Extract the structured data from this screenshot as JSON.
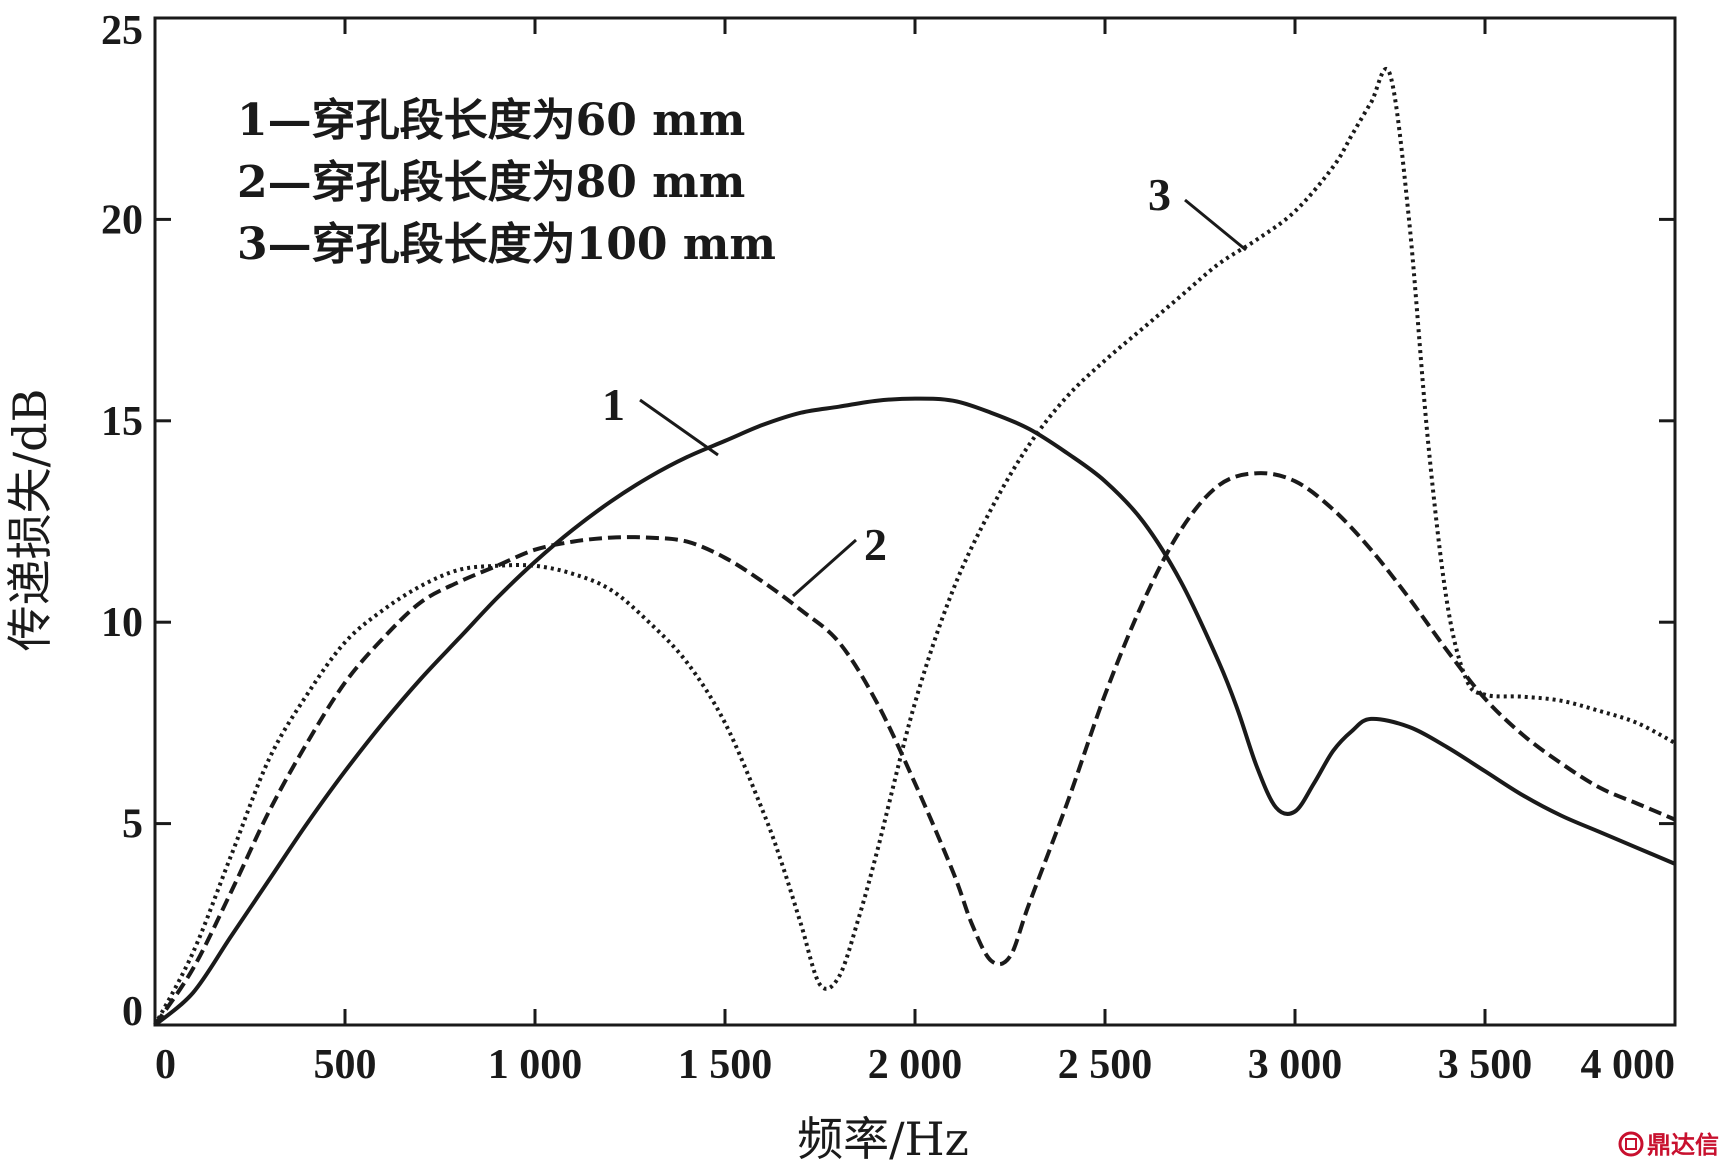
{
  "chart_data": {
    "type": "line",
    "xlabel": "频率/Hz",
    "ylabel": "传递损失/dB",
    "xlim": [
      0,
      4000
    ],
    "ylim": [
      0,
      25
    ],
    "x_ticks": [
      0,
      500,
      1000,
      1500,
      2000,
      2500,
      3000,
      3500,
      4000
    ],
    "x_tick_labels": [
      "0",
      "500",
      "1 000",
      "1 500",
      "2 000",
      "2 500",
      "3 000",
      "3 500",
      "4 000"
    ],
    "y_ticks": [
      0,
      5,
      10,
      15,
      20,
      25
    ],
    "y_tick_labels": [
      "0",
      "5",
      "10",
      "15",
      "20",
      "25"
    ],
    "grid": false,
    "legend_position": "top-left",
    "legend": [
      "1—穿孔段长度为60 mm",
      "2—穿孔段长度为80 mm",
      "3—穿孔段长度为100 mm"
    ],
    "series": [
      {
        "label": "1",
        "style": "solid",
        "x": [
          0,
          100,
          200,
          300,
          400,
          500,
          600,
          700,
          800,
          900,
          1000,
          1100,
          1200,
          1300,
          1400,
          1500,
          1600,
          1700,
          1800,
          1900,
          2000,
          2100,
          2200,
          2300,
          2400,
          2500,
          2600,
          2700,
          2800,
          2850,
          2900,
          2950,
          3000,
          3050,
          3100,
          3150,
          3200,
          3300,
          3400,
          3500,
          3600,
          3700,
          3800,
          3900,
          4000
        ],
        "y": [
          0,
          0.8,
          2.2,
          3.6,
          5.0,
          6.3,
          7.5,
          8.6,
          9.6,
          10.6,
          11.5,
          12.3,
          13.0,
          13.6,
          14.1,
          14.5,
          14.9,
          15.2,
          15.35,
          15.5,
          15.55,
          15.5,
          15.2,
          14.8,
          14.2,
          13.5,
          12.5,
          11.0,
          9.0,
          7.8,
          6.4,
          5.4,
          5.3,
          6.0,
          6.8,
          7.3,
          7.6,
          7.4,
          6.9,
          6.3,
          5.7,
          5.2,
          4.8,
          4.4,
          4.0
        ]
      },
      {
        "label": "2",
        "style": "dashed",
        "x": [
          0,
          100,
          200,
          300,
          400,
          500,
          600,
          700,
          800,
          900,
          1000,
          1100,
          1200,
          1300,
          1400,
          1500,
          1600,
          1700,
          1800,
          1900,
          2000,
          2100,
          2150,
          2200,
          2250,
          2300,
          2400,
          2500,
          2600,
          2700,
          2800,
          2900,
          3000,
          3100,
          3200,
          3300,
          3400,
          3500,
          3600,
          3700,
          3800,
          3900,
          4000
        ],
        "y": [
          0,
          1.4,
          3.3,
          5.3,
          7.0,
          8.5,
          9.6,
          10.5,
          11.0,
          11.4,
          11.8,
          12.0,
          12.1,
          12.1,
          12.0,
          11.6,
          11.0,
          10.3,
          9.5,
          8.0,
          6.0,
          3.8,
          2.5,
          1.6,
          1.7,
          3.0,
          5.5,
          8.2,
          10.5,
          12.3,
          13.4,
          13.7,
          13.5,
          12.8,
          11.8,
          10.6,
          9.3,
          8.1,
          7.2,
          6.5,
          5.9,
          5.5,
          5.1
        ]
      },
      {
        "label": "3",
        "style": "dotted",
        "x": [
          0,
          100,
          200,
          300,
          400,
          500,
          600,
          700,
          800,
          900,
          1000,
          1100,
          1200,
          1300,
          1400,
          1500,
          1600,
          1650,
          1700,
          1750,
          1800,
          1850,
          1900,
          2000,
          2100,
          2200,
          2300,
          2400,
          2500,
          2600,
          2700,
          2800,
          2900,
          3000,
          3100,
          3150,
          3200,
          3250,
          3300,
          3350,
          3400,
          3450,
          3500,
          3600,
          3700,
          3800,
          3900,
          4000
        ],
        "y": [
          0,
          1.8,
          4.2,
          6.6,
          8.2,
          9.5,
          10.3,
          10.9,
          11.3,
          11.4,
          11.4,
          11.2,
          10.8,
          10.0,
          9.0,
          7.5,
          5.3,
          4.0,
          2.5,
          1.0,
          1.2,
          2.6,
          4.3,
          8.0,
          10.8,
          12.8,
          14.4,
          15.6,
          16.5,
          17.3,
          18.1,
          18.9,
          19.5,
          20.2,
          21.3,
          22.1,
          22.9,
          23.6,
          20.0,
          14.5,
          10.5,
          8.6,
          8.2,
          8.15,
          8.05,
          7.8,
          7.5,
          7.0
        ]
      }
    ],
    "callouts": [
      {
        "text": "1",
        "series": "1"
      },
      {
        "text": "2",
        "series": "2"
      },
      {
        "text": "3",
        "series": "3"
      }
    ]
  },
  "watermark": {
    "text": "鼎达信",
    "icon": "logo-icon",
    "color": "#c8102e"
  }
}
